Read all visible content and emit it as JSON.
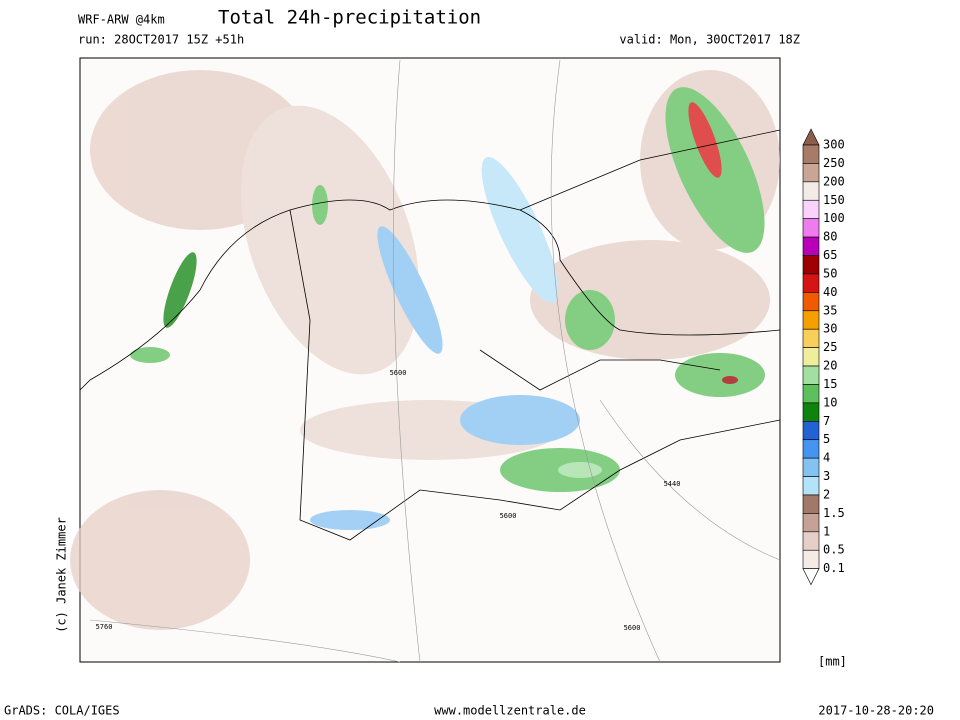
{
  "header": {
    "model": "WRF-ARW @4km",
    "title": "Total 24h-precipitation",
    "run": "run: 28OCT2017 15Z +51h",
    "valid": "valid: Mon, 30OCT2017 18Z"
  },
  "credit": "(c) Janek Zimmer",
  "contour_labels": [
    "5600",
    "5440",
    "5600",
    "5600",
    "5760"
  ],
  "legend": {
    "unit": "[mm]",
    "top_color": "#8c5f4c",
    "entries": [
      {
        "label": "300",
        "color": "#a87a68"
      },
      {
        "label": "250",
        "color": "#c9a596"
      },
      {
        "label": "200",
        "color": "#f3ebe7"
      },
      {
        "label": "150",
        "color": "#f9d3f9"
      },
      {
        "label": "100",
        "color": "#ef7cef"
      },
      {
        "label": "80",
        "color": "#b800b8"
      },
      {
        "label": "65",
        "color": "#9c0000"
      },
      {
        "label": "50",
        "color": "#d61414"
      },
      {
        "label": "40",
        "color": "#f05a00"
      },
      {
        "label": "35",
        "color": "#f6a000"
      },
      {
        "label": "30",
        "color": "#f8cf5a"
      },
      {
        "label": "25",
        "color": "#eeee9c"
      },
      {
        "label": "20",
        "color": "#a2e0a2"
      },
      {
        "label": "15",
        "color": "#5cc05c"
      },
      {
        "label": "10",
        "color": "#0e840e"
      },
      {
        "label": "7",
        "color": "#2262d2"
      },
      {
        "label": "5",
        "color": "#4494f0"
      },
      {
        "label": "4",
        "color": "#84c2f2"
      },
      {
        "label": "3",
        "color": "#b4e2f8"
      },
      {
        "label": "2",
        "color": "#a27868"
      },
      {
        "label": "1.5",
        "color": "#c6a196"
      },
      {
        "label": "1",
        "color": "#e6cfc6"
      },
      {
        "label": "0.5",
        "color": "#f5ebe6"
      },
      {
        "label": "0.1",
        "color": "#ffffff"
      }
    ]
  },
  "footer": {
    "left": "GrADS: COLA/IGES",
    "center": "www.modellzentrale.de",
    "right": "2017-10-28-20:20"
  }
}
